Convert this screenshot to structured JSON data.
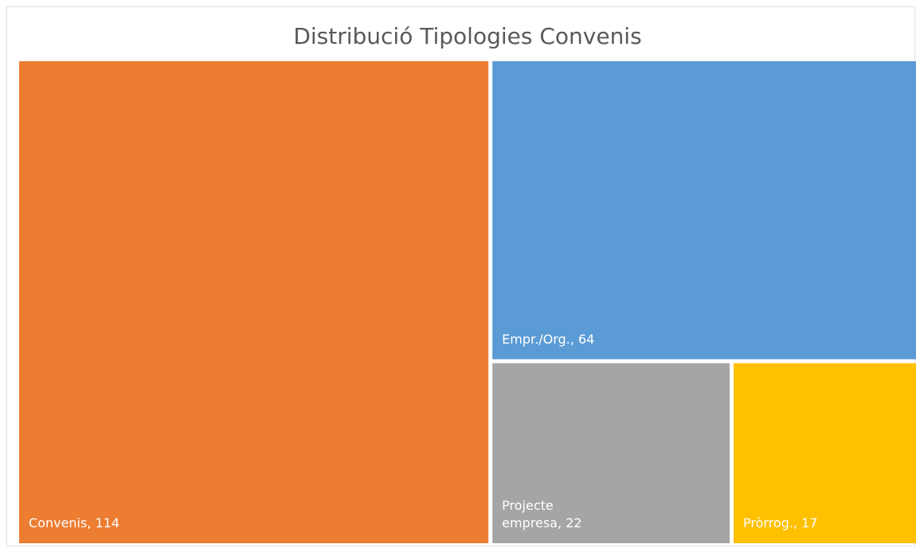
{
  "chart_data": {
    "type": "treemap",
    "title": "Distribució Tipologies Convenis",
    "values": [
      114,
      64,
      22,
      17
    ],
    "value_labels": [
      "Convenis, 114",
      "Empr./Org., 64",
      "Projecte empresa, 22",
      "Pròrrog., 17"
    ],
    "colors": [
      "#ED7D31",
      "#5B9BD5",
      "#A5A5A5",
      "#FFC000"
    ]
  }
}
